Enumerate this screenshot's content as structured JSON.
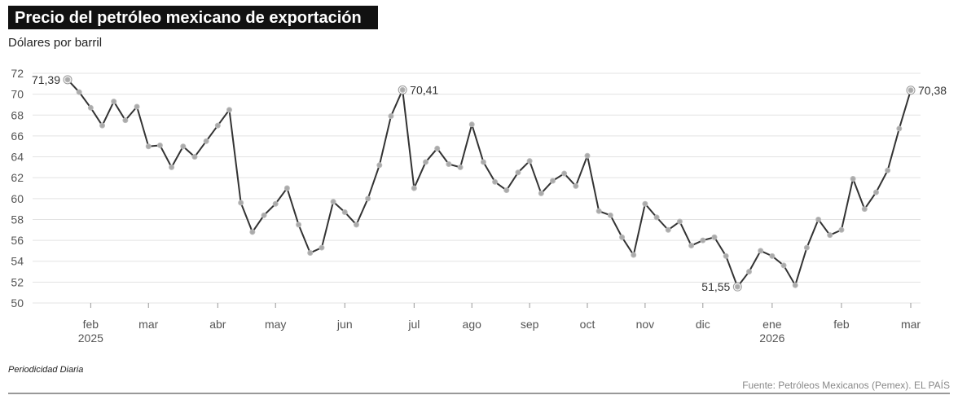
{
  "chart_data": {
    "type": "line",
    "title": "Precio del petróleo mexicano de exportación",
    "subtitle": "Dólares por barril",
    "note": "Periodicidad Diaria",
    "source": "Fuente: Petróleos Mexicanos (Pemex). EL PAÍS",
    "categories": [
      null,
      null,
      "feb\n2025",
      null,
      null,
      null,
      null,
      "mar",
      null,
      null,
      null,
      null,
      null,
      "abr",
      null,
      null,
      null,
      null,
      "may",
      null,
      null,
      null,
      null,
      null,
      "jun",
      null,
      null,
      null,
      null,
      null,
      "jul",
      null,
      null,
      null,
      null,
      "ago",
      null,
      null,
      null,
      null,
      "sep",
      null,
      null,
      null,
      null,
      "oct",
      null,
      null,
      null,
      null,
      "nov",
      null,
      null,
      null,
      null,
      "dic",
      null,
      null,
      null,
      null,
      null,
      "ene\n2026",
      null,
      null,
      null,
      null,
      null,
      "feb",
      null,
      null,
      null,
      null,
      null,
      "mar"
    ],
    "values": [
      71.39,
      70.2,
      68.7,
      67.0,
      69.3,
      67.5,
      68.8,
      65.0,
      65.1,
      63.0,
      65.0,
      64.0,
      65.5,
      67.0,
      68.5,
      59.6,
      56.8,
      58.4,
      59.5,
      61.0,
      57.5,
      54.8,
      55.3,
      59.7,
      58.7,
      57.5,
      60.0,
      63.2,
      67.9,
      70.41,
      61.0,
      63.5,
      64.8,
      63.3,
      63.0,
      67.1,
      63.5,
      61.6,
      60.8,
      62.5,
      63.6,
      60.5,
      61.7,
      62.4,
      61.2,
      64.1,
      58.8,
      58.4,
      56.3,
      54.6,
      59.5,
      58.2,
      57.0,
      57.8,
      55.5,
      56.0,
      56.3,
      54.5,
      51.55,
      53.0,
      55.0,
      54.5,
      53.6,
      51.7,
      55.3,
      58.0,
      56.5,
      57.0,
      61.9,
      59.0,
      60.6,
      62.7,
      66.7,
      70.38
    ],
    "value_labels": [
      "71,39",
      null,
      null,
      null,
      null,
      null,
      null,
      null,
      null,
      null,
      null,
      null,
      null,
      null,
      null,
      null,
      null,
      null,
      null,
      null,
      null,
      null,
      null,
      null,
      null,
      null,
      null,
      null,
      null,
      "70,41",
      null,
      null,
      null,
      null,
      null,
      null,
      null,
      null,
      null,
      null,
      null,
      null,
      null,
      null,
      null,
      null,
      null,
      null,
      null,
      null,
      null,
      null,
      null,
      null,
      null,
      null,
      null,
      null,
      "51,55",
      null,
      null,
      null,
      null,
      null,
      null,
      null,
      null,
      null,
      null,
      null,
      null,
      null,
      null,
      "70,38"
    ],
    "color": "#333333",
    "ylim": [
      50,
      72
    ],
    "yticks": [
      50,
      52,
      54,
      56,
      58,
      60,
      62,
      64,
      66,
      68,
      70,
      72
    ],
    "grid": true
  }
}
